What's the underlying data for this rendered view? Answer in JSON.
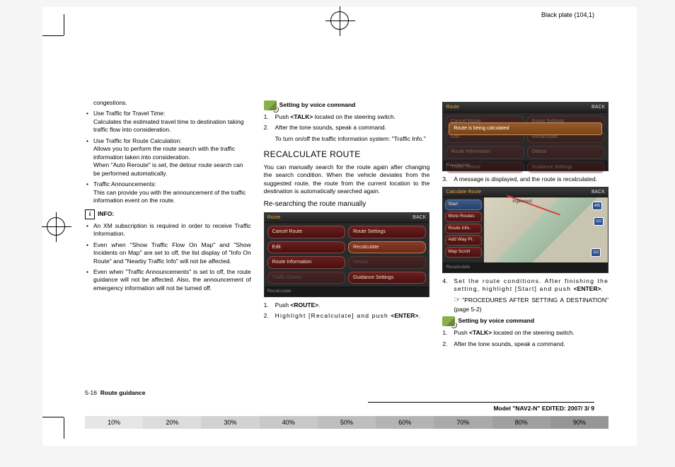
{
  "header": {
    "plate": "Black plate (104,1)"
  },
  "col1": {
    "top": "congestions.",
    "b1_title": "Use Traffic for Travel Time:",
    "b1_body": "Calculates the estimated travel time to destination taking traffic flow into consideration.",
    "b2_title": "Use Traffic for Route Calculation:",
    "b2_body1": "Allows you to perform the route search with the traffic information taken into consideration.",
    "b2_body2": "When \"Auto Reroute\" is set, the detour route search can be performed automatically.",
    "b3_title": "Traffic Announcements:",
    "b3_body": "This can provide you with the announcement of the traffic information event on the route.",
    "info_label": "INFO:",
    "i1": "An XM subscription is required in order to receive Traffic Information.",
    "i2": "Even when \"Show Traffic Flow On Map\" and \"Show Incidents on Map\" are set to off, the list display of \"Info On Route\" and \"Nearby Traffic Info\" will not be affected.",
    "i3": "Even when \"Traffic Announcements\" is set to off, the route guidance will not be affected. Also, the announcement of emergency information will not be turned off."
  },
  "col2": {
    "voice_label": "Setting by voice command",
    "v1a": "Push ",
    "v1b": "<TALK>",
    "v1c": " located on the steering switch.",
    "v2a": "After the tone sounds, speak a command.",
    "v2b": "To turn on/off the traffic information system: \"Traffic Info.\"",
    "h2": "RECALCULATE ROUTE",
    "p1": "You can manually search for the route again after changing the search condition. When the vehicle deviates from the suggested route, the route from the current location to the destination is automatically searched again.",
    "h3": "Re-searching the route manually",
    "ss": {
      "title": "Route",
      "back": "BACK",
      "btns": [
        "Cancel Route",
        "Route Settings",
        "Edit",
        "Recalculate",
        "Route Information",
        "Detour",
        "Traffic Detour",
        "Guidance Settings"
      ],
      "foot": "Recalculate"
    },
    "s1a": "Push ",
    "s1b": "<ROUTE>",
    "s1c": ".",
    "s2a": "Highlight [Recalculate] and push ",
    "s2b": "<ENTER>",
    "s2c": "."
  },
  "col3": {
    "ss1": {
      "title": "Route",
      "back": "BACK",
      "msg": "Route is being calculated",
      "foot": "Recalculate",
      "btns_l": [
        "Cancel Route",
        "Edit",
        "Route Information",
        "Traffic Detour"
      ],
      "btns_r": [
        "Route Settings",
        "Recalculate",
        "Detour",
        "Guidance Settings"
      ]
    },
    "s3": "A message is displayed, and the route is recalculated.",
    "ss2": {
      "title": "Calculate Route",
      "back": "BACK",
      "side": [
        "Start",
        "More Routes",
        "Route Info.",
        "Add Way Pt.",
        "Map Scroll"
      ],
      "foot": "Recalculate",
      "map_label": "Inglewood",
      "shields": [
        "405",
        "110",
        "110"
      ]
    },
    "s4a": "Set the route conditions. After finishing the setting, highlight [Start] and push ",
    "s4b": "<ENTER>",
    "s4c": ".",
    "ref": "\"PROCEDURES AFTER SETTING A DESTINATION\" (page 5-2)",
    "voice_label": "Setting by voice command",
    "v1a": "Push ",
    "v1b": "<TALK>",
    "v1c": " located on the steering switch.",
    "v2": "After the tone sounds, speak a command."
  },
  "footer": {
    "section_page": "5-16",
    "section_title": "Route guidance",
    "model": "Model \"NAV2-N\" EDITED: 2007/ 3/ 9",
    "pct": [
      "10%",
      "20%",
      "30%",
      "40%",
      "50%",
      "60%",
      "70%",
      "80%",
      "90%"
    ]
  },
  "colors": {
    "pct_bg": [
      "#e6e6e6",
      "#dcdcdc",
      "#d2d2d2",
      "#c8c8c8",
      "#bebebe",
      "#b4b4b4",
      "#aaaaaa",
      "#a0a0a0",
      "#969696"
    ]
  }
}
